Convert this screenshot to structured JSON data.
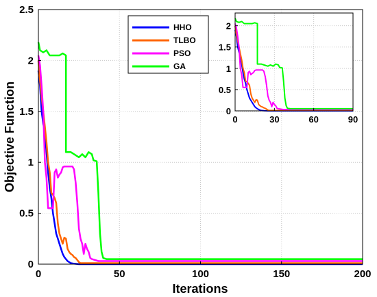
{
  "chart_data": {
    "type": "line",
    "xlabel": "Iterations",
    "ylabel": "Objective Function",
    "xlim": [
      0,
      200
    ],
    "ylim": [
      0,
      2.5
    ],
    "xticks": [
      "0",
      "50",
      "100",
      "150",
      "200"
    ],
    "yticks": [
      "0",
      "0.5",
      "1",
      "1.5",
      "2",
      "2.5"
    ],
    "grid": true,
    "legend": "top-center",
    "series": [
      {
        "name": "HHO",
        "color": "#0000ff",
        "points": [
          [
            0,
            1.9
          ],
          [
            1,
            1.75
          ],
          [
            2,
            1.5
          ],
          [
            3,
            1.38
          ],
          [
            4,
            1.3
          ],
          [
            5,
            1.1
          ],
          [
            6,
            0.9
          ],
          [
            7,
            0.75
          ],
          [
            8,
            0.65
          ],
          [
            9,
            0.5
          ],
          [
            10,
            0.4
          ],
          [
            11,
            0.3
          ],
          [
            12,
            0.25
          ],
          [
            13,
            0.2
          ],
          [
            14,
            0.15
          ],
          [
            15,
            0.1
          ],
          [
            16,
            0.07
          ],
          [
            17,
            0.05
          ],
          [
            18,
            0.03
          ],
          [
            19,
            0.02
          ],
          [
            20,
            0.01
          ],
          [
            22,
            0.005
          ],
          [
            25,
            0.0
          ],
          [
            200,
            0.0
          ]
        ]
      },
      {
        "name": "TLBO",
        "color": "#ff6600",
        "points": [
          [
            0,
            2.0
          ],
          [
            1,
            1.8
          ],
          [
            2,
            1.65
          ],
          [
            3,
            1.5
          ],
          [
            4,
            1.35
          ],
          [
            5,
            1.2
          ],
          [
            6,
            1.0
          ],
          [
            7,
            0.9
          ],
          [
            8,
            0.7
          ],
          [
            9,
            0.68
          ],
          [
            10,
            0.65
          ],
          [
            11,
            0.6
          ],
          [
            12,
            0.4
          ],
          [
            13,
            0.3
          ],
          [
            14,
            0.25
          ],
          [
            15,
            0.2
          ],
          [
            16,
            0.26
          ],
          [
            17,
            0.25
          ],
          [
            18,
            0.15
          ],
          [
            19,
            0.12
          ],
          [
            20,
            0.1
          ],
          [
            21,
            0.09
          ],
          [
            22,
            0.07
          ],
          [
            23,
            0.06
          ],
          [
            24,
            0.04
          ],
          [
            25,
            0.02
          ],
          [
            26,
            0.01
          ],
          [
            30,
            0.01
          ],
          [
            200,
            0.01
          ]
        ]
      },
      {
        "name": "PSO",
        "color": "#ff00ff",
        "points": [
          [
            0,
            2.05
          ],
          [
            1,
            1.95
          ],
          [
            2,
            1.75
          ],
          [
            3,
            1.5
          ],
          [
            4,
            1.0
          ],
          [
            5,
            0.85
          ],
          [
            6,
            0.55
          ],
          [
            9,
            0.55
          ],
          [
            10,
            0.9
          ],
          [
            11,
            0.93
          ],
          [
            12,
            0.85
          ],
          [
            13,
            0.88
          ],
          [
            14,
            0.9
          ],
          [
            15,
            0.95
          ],
          [
            16,
            0.96
          ],
          [
            21,
            0.96
          ],
          [
            22,
            0.93
          ],
          [
            23,
            0.8
          ],
          [
            24,
            0.6
          ],
          [
            25,
            0.35
          ],
          [
            26,
            0.25
          ],
          [
            27,
            0.2
          ],
          [
            28,
            0.1
          ],
          [
            29,
            0.2
          ],
          [
            30,
            0.15
          ],
          [
            31,
            0.12
          ],
          [
            32,
            0.06
          ],
          [
            33,
            0.05
          ],
          [
            35,
            0.04
          ],
          [
            37,
            0.03
          ],
          [
            200,
            0.03
          ]
        ]
      },
      {
        "name": "GA",
        "color": "#00ff00",
        "points": [
          [
            0,
            2.18
          ],
          [
            1,
            2.1
          ],
          [
            3,
            2.08
          ],
          [
            5,
            2.1
          ],
          [
            7,
            2.05
          ],
          [
            9,
            2.05
          ],
          [
            13,
            2.05
          ],
          [
            15,
            2.07
          ],
          [
            17,
            2.05
          ],
          [
            17,
            1.1
          ],
          [
            20,
            1.1
          ],
          [
            23,
            1.07
          ],
          [
            25,
            1.05
          ],
          [
            27,
            1.08
          ],
          [
            29,
            1.05
          ],
          [
            31,
            1.1
          ],
          [
            33,
            1.08
          ],
          [
            34,
            1.02
          ],
          [
            36,
            1.01
          ],
          [
            37,
            0.7
          ],
          [
            38,
            0.3
          ],
          [
            39,
            0.12
          ],
          [
            40,
            0.06
          ],
          [
            42,
            0.05
          ],
          [
            45,
            0.05
          ],
          [
            200,
            0.05
          ]
        ]
      }
    ],
    "inset": {
      "xlim": [
        0,
        90
      ],
      "ylim": [
        0,
        2.3
      ],
      "xticks": [
        "0",
        "30",
        "60",
        "90"
      ],
      "yticks": [
        "0",
        "0.5",
        "1",
        "1.5",
        "2"
      ],
      "grid": true
    }
  }
}
